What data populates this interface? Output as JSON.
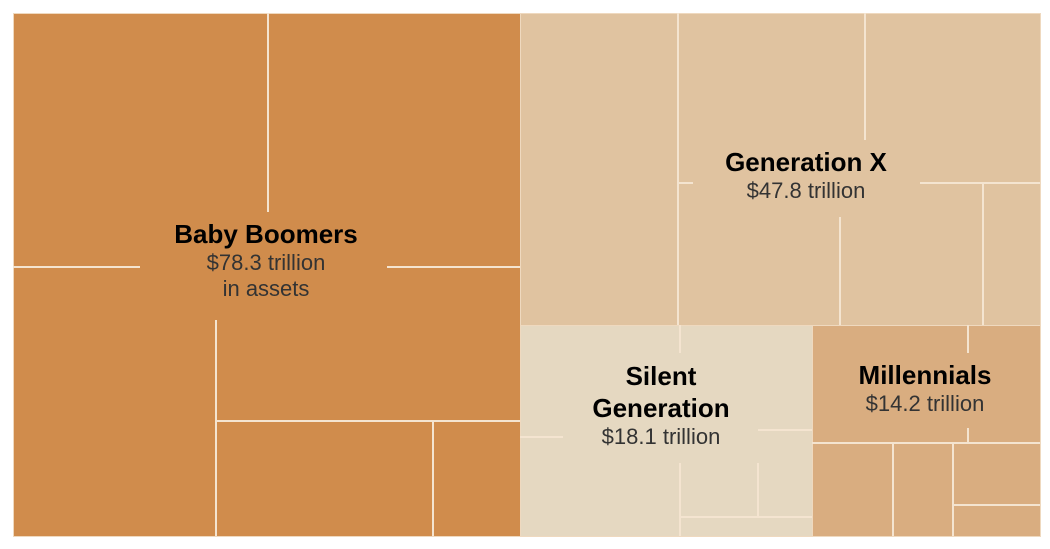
{
  "chart_data": {
    "type": "treemap",
    "title": "",
    "unit": "trillion USD in assets",
    "segments": [
      {
        "name": "Baby Boomers",
        "value": 78.3,
        "label": "$78.3 trillion",
        "sub": "in assets",
        "color": "#D08C4C"
      },
      {
        "name": "Generation X",
        "value": 47.8,
        "label": "$47.8 trillion",
        "color": "#E0C3A0"
      },
      {
        "name": "Silent Generation",
        "value": 18.1,
        "label": "$18.1 trillion",
        "color": "#E5D8C1"
      },
      {
        "name": "Millennials",
        "value": 14.2,
        "label": "$14.2 trillion",
        "color": "#D9AD80"
      }
    ]
  }
}
